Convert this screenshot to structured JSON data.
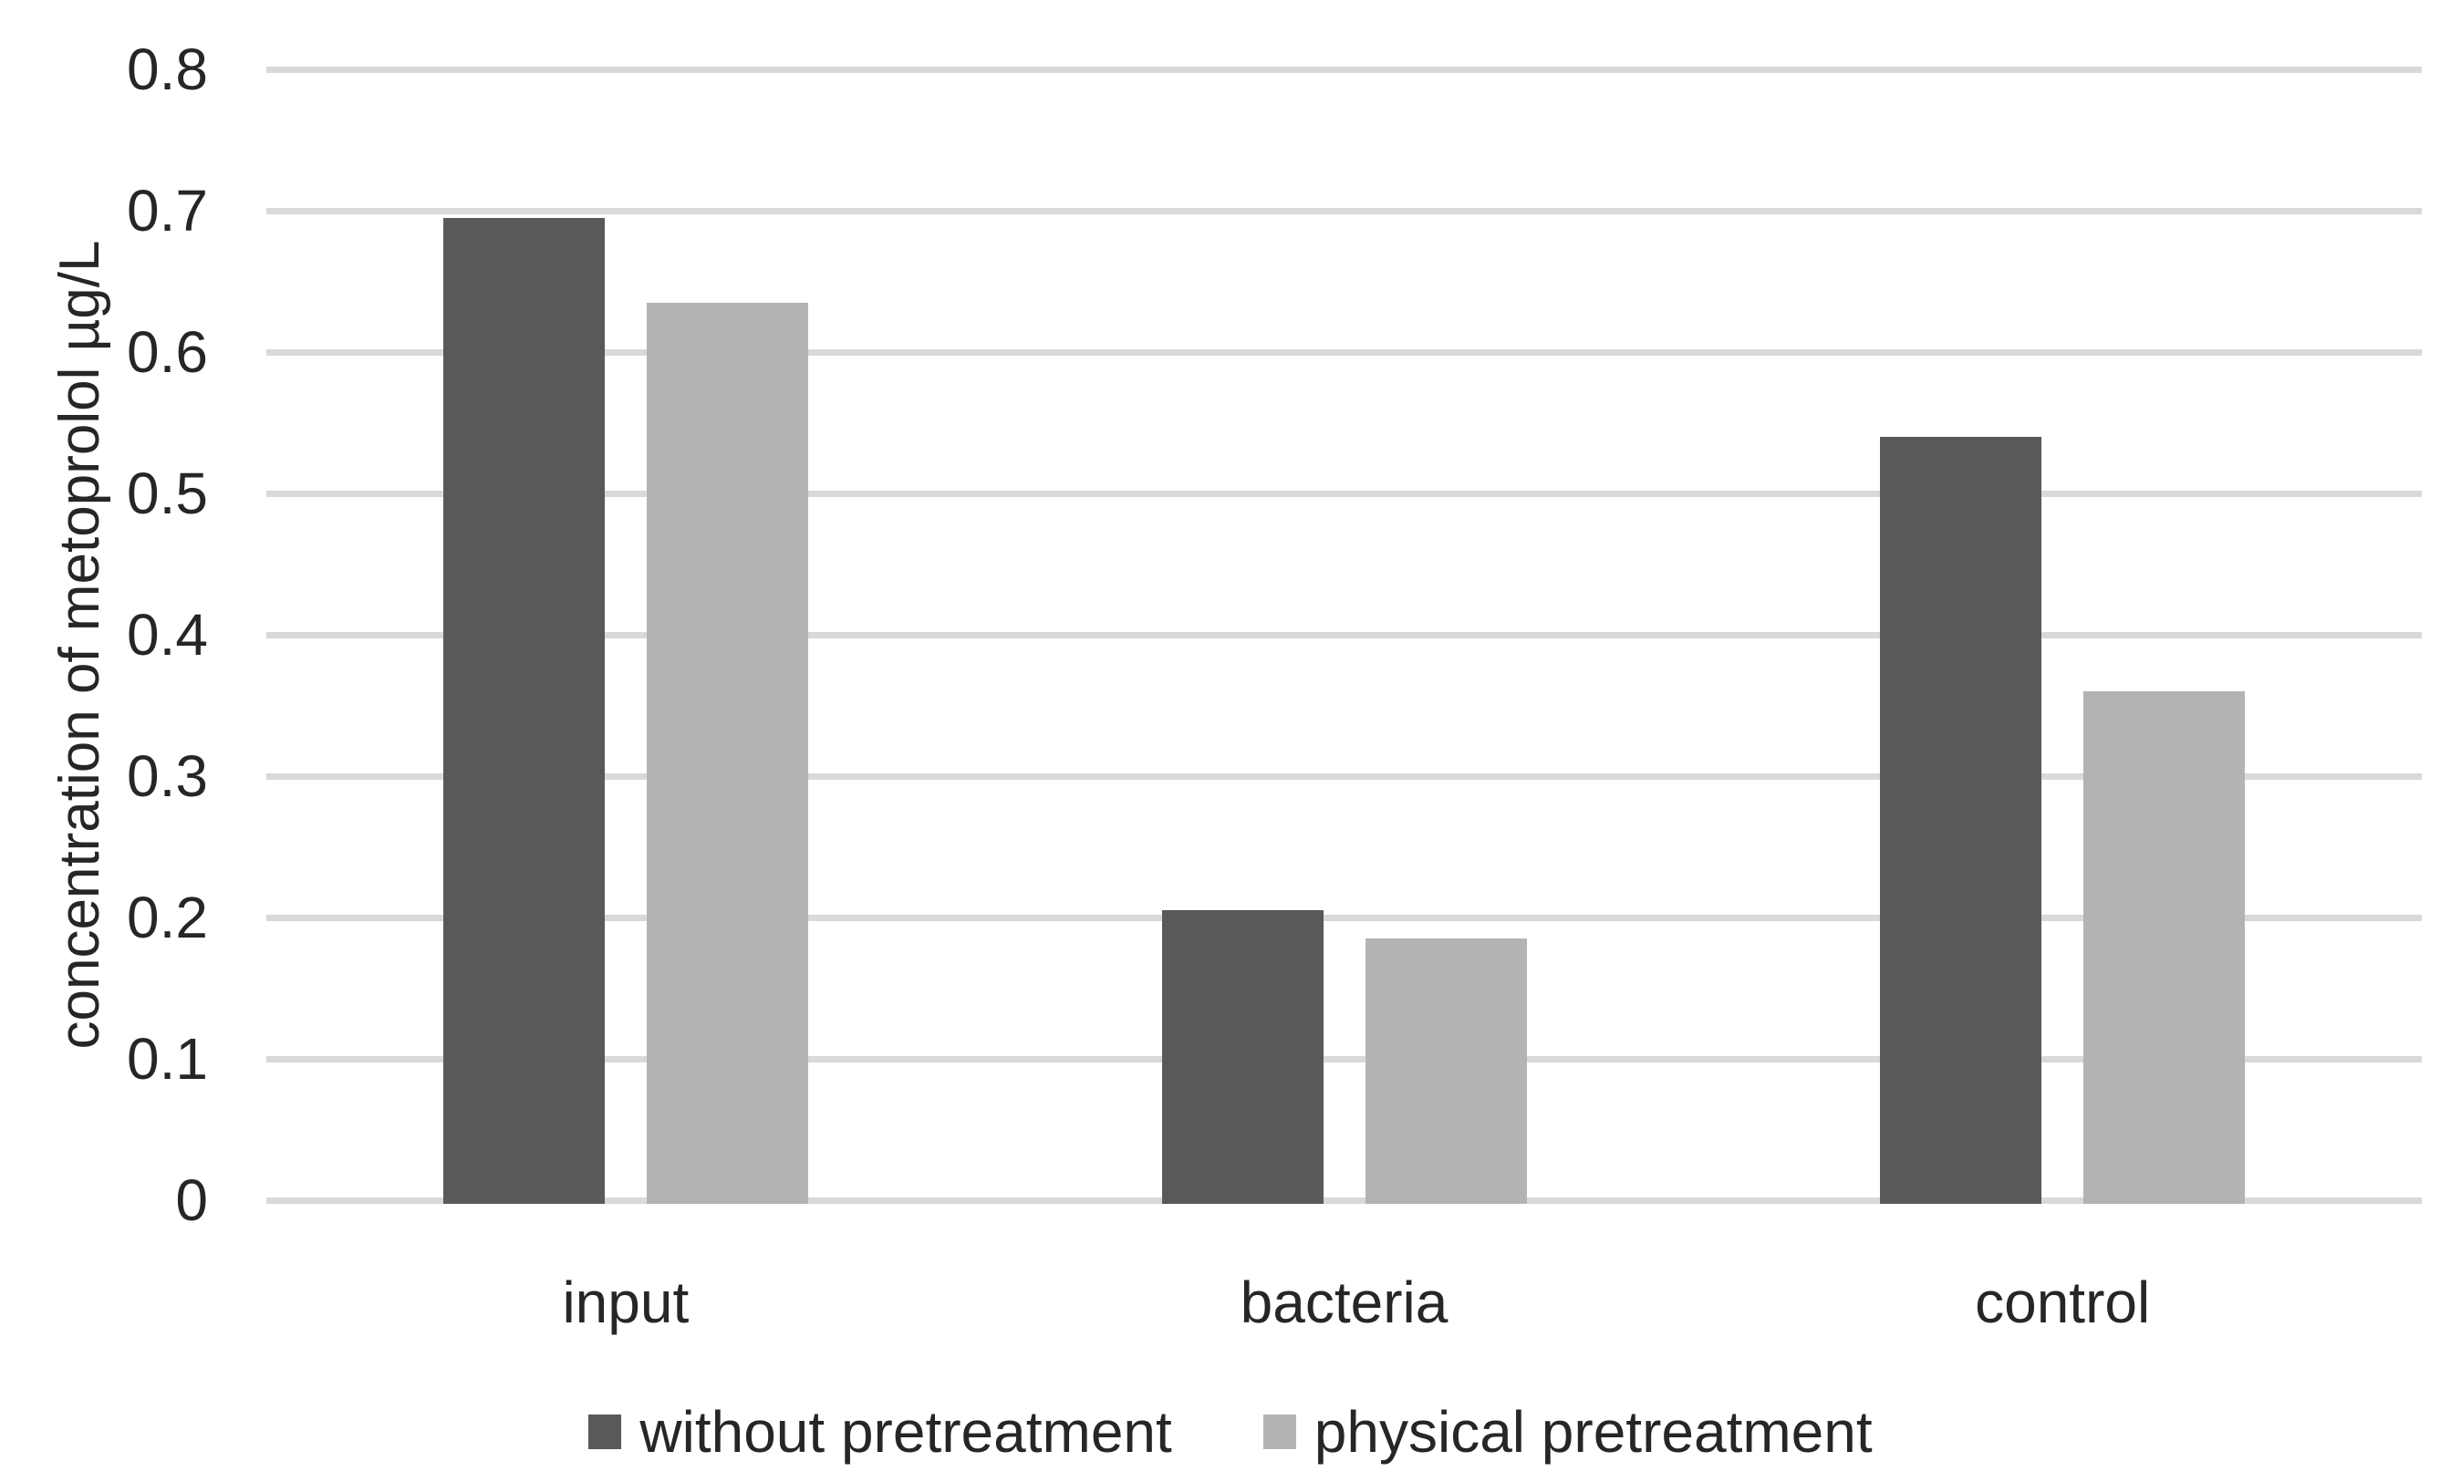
{
  "chart_data": {
    "type": "bar",
    "title": "",
    "categories": [
      "input",
      "bacteria",
      "control"
    ],
    "series": [
      {
        "name": "without pretreatment",
        "color": "#595959",
        "values": [
          0.695,
          0.205,
          0.54
        ]
      },
      {
        "name": "physical pretreatment",
        "color": "#b3b3b3",
        "values": [
          0.635,
          0.185,
          0.36
        ]
      }
    ],
    "xlabel": "",
    "ylabel": "concentration of metoprolol µg/L",
    "ylim": [
      0,
      0.8
    ],
    "ytick_step": 0.1,
    "yticks": [
      "0",
      "0.1",
      "0.2",
      "0.3",
      "0.4",
      "0.5",
      "0.6",
      "0.7",
      "0.8"
    ],
    "grid": "horizontal",
    "legend_position": "bottom",
    "colors": {
      "background": "#ffffff",
      "gridline": "#d9d9d9",
      "text": "#262626",
      "series_dark": "#595959",
      "series_light": "#b3b3b3"
    }
  }
}
